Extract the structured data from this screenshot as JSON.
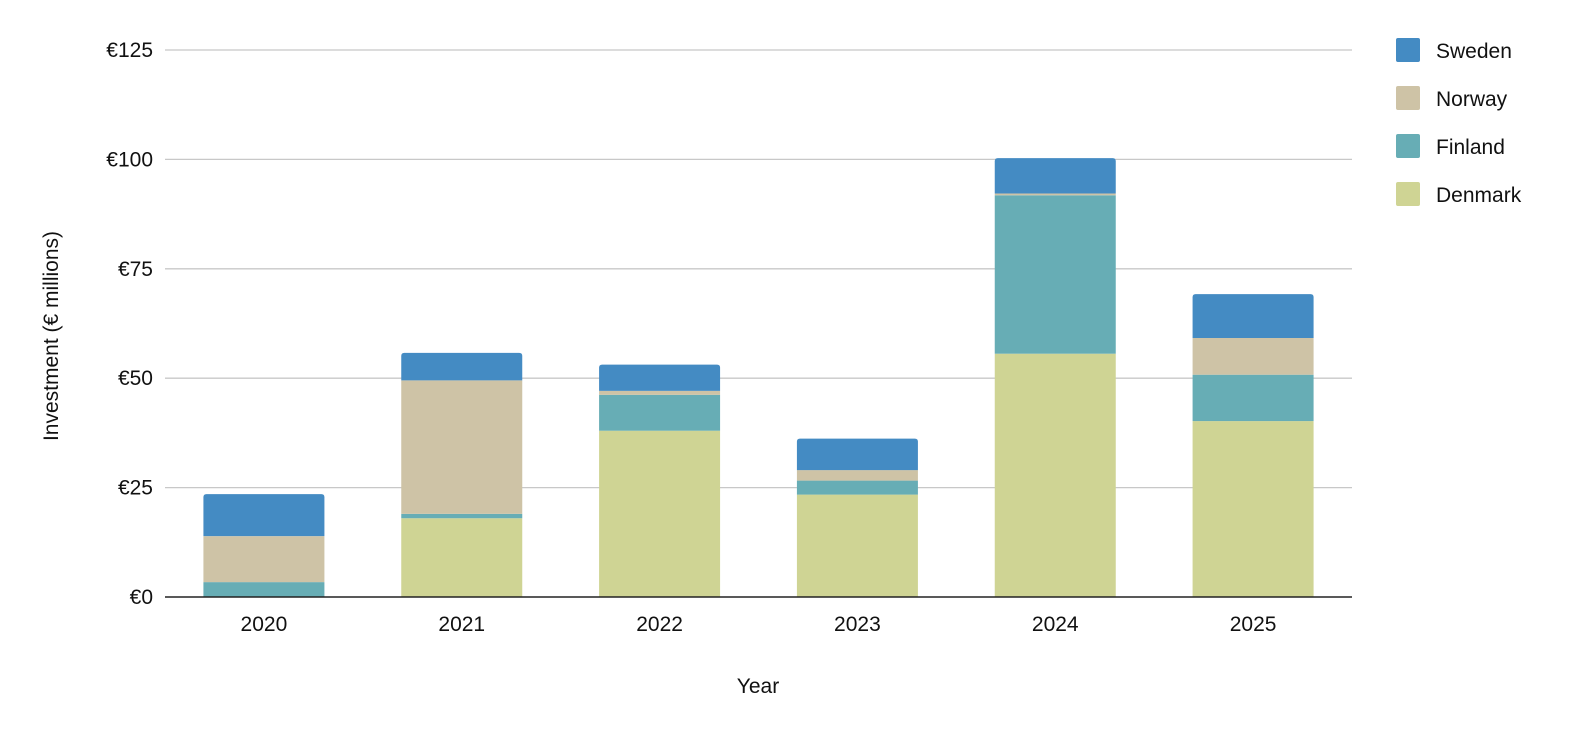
{
  "chart_data": {
    "type": "bar",
    "stacked": true,
    "title": "",
    "xlabel": "Year",
    "ylabel": "Investment (€ millions)",
    "ylim": [
      0,
      125
    ],
    "yticks": [
      {
        "value": 0,
        "label": "€0"
      },
      {
        "value": 25,
        "label": "€25"
      },
      {
        "value": 50,
        "label": "€50"
      },
      {
        "value": 75,
        "label": "€75"
      },
      {
        "value": 100,
        "label": "€100"
      },
      {
        "value": 125,
        "label": "€125"
      }
    ],
    "categories": [
      "2020",
      "2021",
      "2022",
      "2023",
      "2024",
      "2025"
    ],
    "series": [
      {
        "name": "Denmark",
        "color": "#cfd494",
        "values": [
          0,
          18,
          38,
          23.4,
          55.6,
          40.2
        ]
      },
      {
        "name": "Finland",
        "color": "#67adb5",
        "values": [
          3.4,
          1,
          8.2,
          3.2,
          36.2,
          10.6
        ]
      },
      {
        "name": "Norway",
        "color": "#cec3a6",
        "values": [
          10.5,
          30.5,
          0.9,
          2.4,
          0.4,
          8.4
        ]
      },
      {
        "name": "Sweden",
        "color": "#448bc3",
        "values": [
          9.6,
          6.3,
          6,
          7.2,
          8.1,
          10
        ]
      }
    ],
    "legend_order": [
      "Sweden",
      "Norway",
      "Finland",
      "Denmark"
    ],
    "legend_position": "right",
    "grid": true,
    "gridline_color": "#c8c8c8",
    "axis_color": "#222222"
  }
}
